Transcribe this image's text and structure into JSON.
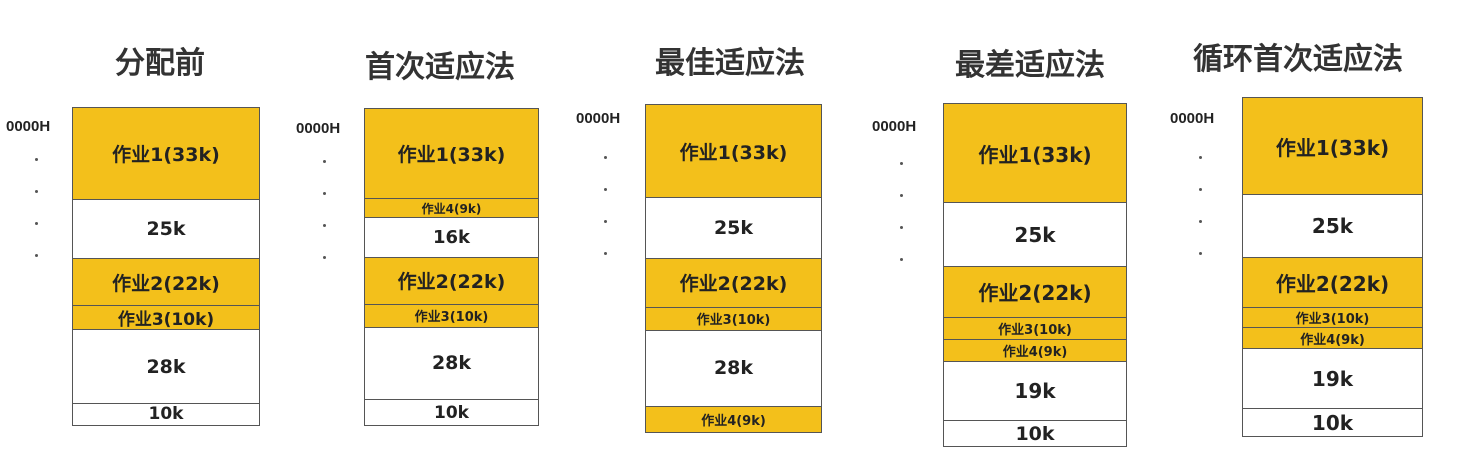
{
  "address_label": "0000H",
  "columns": [
    {
      "title": "分配前",
      "segments": [
        {
          "label": "作业1(33k)",
          "kind": "job"
        },
        {
          "label": "25k",
          "kind": "free"
        },
        {
          "label": "作业2(22k)",
          "kind": "job"
        },
        {
          "label": "作业3(10k)",
          "kind": "job"
        },
        {
          "label": "28k",
          "kind": "free"
        },
        {
          "label": "10k",
          "kind": "free"
        }
      ]
    },
    {
      "title": "首次适应法",
      "segments": [
        {
          "label": "作业1(33k)",
          "kind": "job"
        },
        {
          "label": "作业4(9k)",
          "kind": "job"
        },
        {
          "label": "16k",
          "kind": "free"
        },
        {
          "label": "作业2(22k)",
          "kind": "job"
        },
        {
          "label": "作业3(10k)",
          "kind": "job"
        },
        {
          "label": "28k",
          "kind": "free"
        },
        {
          "label": "10k",
          "kind": "free"
        }
      ]
    },
    {
      "title": "最佳适应法",
      "segments": [
        {
          "label": "作业1(33k)",
          "kind": "job"
        },
        {
          "label": "25k",
          "kind": "free"
        },
        {
          "label": "作业2(22k)",
          "kind": "job"
        },
        {
          "label": "作业3(10k)",
          "kind": "job"
        },
        {
          "label": "28k",
          "kind": "free"
        },
        {
          "label": "作业4(9k)",
          "kind": "job"
        }
      ]
    },
    {
      "title": "最差适应法",
      "segments": [
        {
          "label": "作业1(33k)",
          "kind": "job"
        },
        {
          "label": "25k",
          "kind": "free"
        },
        {
          "label": "作业2(22k)",
          "kind": "job"
        },
        {
          "label": "作业3(10k)",
          "kind": "job"
        },
        {
          "label": "作业4(9k)",
          "kind": "job"
        },
        {
          "label": "19k",
          "kind": "free"
        },
        {
          "label": "10k",
          "kind": "free"
        }
      ]
    },
    {
      "title": "循环首次适应法",
      "segments": [
        {
          "label": "作业1(33k)",
          "kind": "job"
        },
        {
          "label": "25k",
          "kind": "free"
        },
        {
          "label": "作业2(22k)",
          "kind": "job"
        },
        {
          "label": "作业3(10k)",
          "kind": "job"
        },
        {
          "label": "作业4(9k)",
          "kind": "job"
        },
        {
          "label": "19k",
          "kind": "free"
        },
        {
          "label": "10k",
          "kind": "free"
        }
      ]
    }
  ],
  "colors": {
    "job": "#F3C01B",
    "free": "#FFFFFF",
    "border": "#555555"
  }
}
